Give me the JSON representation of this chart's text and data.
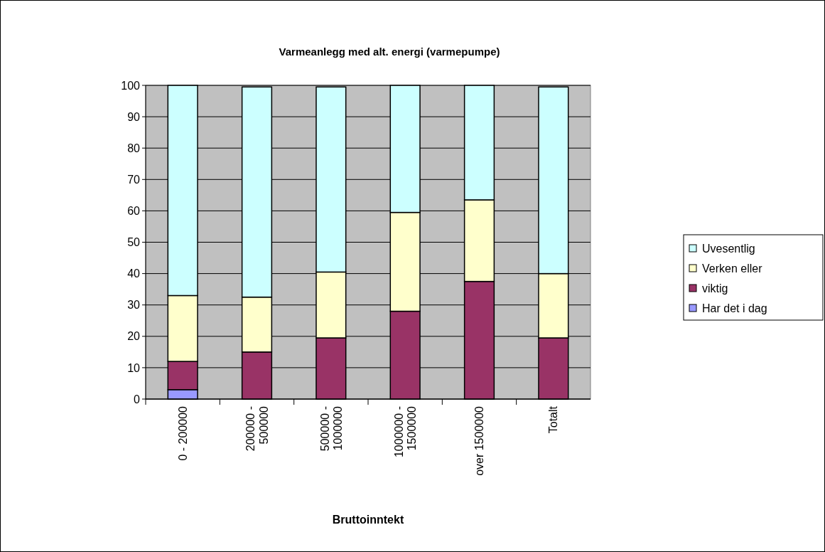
{
  "chart_data": {
    "type": "bar",
    "stacked": true,
    "title": "Varmeanlegg med alt. energi (varmepumpe)",
    "xlabel": "Bruttoinntekt",
    "categories": [
      "0 - 200000",
      "200000 - 500000",
      "500000 - 1000000",
      "1000000 - 1500000",
      "over 1500000",
      "Totalt"
    ],
    "series": [
      {
        "name": "Har det i dag",
        "color": "#9999ff",
        "values": [
          3,
          null,
          null,
          0,
          0,
          null
        ]
      },
      {
        "name": "viktig",
        "color": "#993366",
        "values": [
          9,
          15,
          19.5,
          28,
          37.5,
          19.5
        ]
      },
      {
        "name": "Verken eller",
        "color": "#ffffcc",
        "values": [
          21,
          17.5,
          21,
          31.5,
          26,
          20.5
        ]
      },
      {
        "name": "Uvesentlig",
        "color": "#ccffff",
        "values": [
          67,
          67,
          59,
          40.5,
          36.5,
          59.5
        ]
      }
    ],
    "ylim": [
      0,
      100
    ],
    "yticks": [
      0,
      10,
      20,
      30,
      40,
      50,
      60,
      70,
      80,
      90,
      100
    ],
    "grid": "y",
    "legend": "right"
  }
}
